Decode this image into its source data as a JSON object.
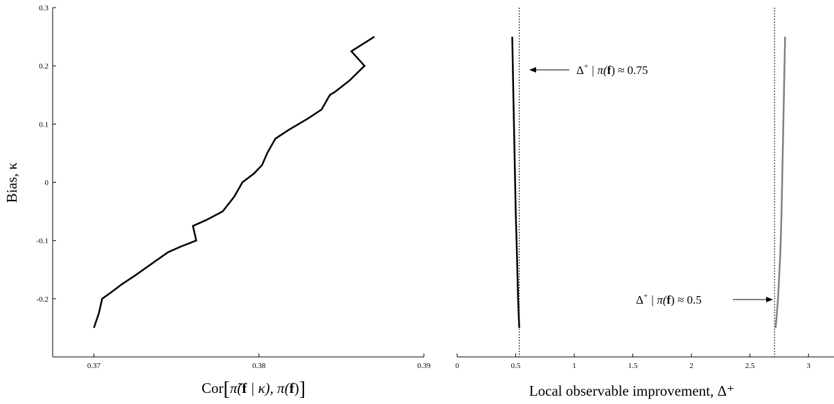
{
  "chart_data": [
    {
      "type": "line",
      "ylabel": "Bias, κ",
      "xlabel_parts": [
        "Cor",
        "[",
        "π̃(",
        "f",
        " | κ), π(",
        "f",
        ")",
        "]"
      ],
      "xlim": [
        0.3675,
        0.39
      ],
      "ylim": [
        -0.3,
        0.3
      ],
      "x_ticks": [
        "0.37",
        "0.38",
        "0.39"
      ],
      "x_tick_values": [
        0.37,
        0.38,
        0.39
      ],
      "y_ticks": [
        "0.3",
        "0.2",
        "0.1",
        "0",
        "-0.1",
        "-0.2"
      ],
      "y_tick_values": [
        0.3,
        0.2,
        0.1,
        0,
        -0.1,
        -0.2
      ],
      "series": [
        {
          "color": "#000000",
          "x": [
            0.37,
            0.3703,
            0.3705,
            0.371,
            0.3717,
            0.3725,
            0.3735,
            0.3745,
            0.3753,
            0.3762,
            0.376,
            0.3768,
            0.3778,
            0.3785,
            0.379,
            0.3797,
            0.3802,
            0.3805,
            0.381,
            0.3818,
            0.383,
            0.3838,
            0.3843,
            0.3846,
            0.3855,
            0.3864,
            0.3856,
            0.387
          ],
          "y": [
            -0.25,
            -0.225,
            -0.2,
            -0.19,
            -0.175,
            -0.16,
            -0.14,
            -0.12,
            -0.11,
            -0.1,
            -0.075,
            -0.065,
            -0.05,
            -0.025,
            0.0,
            0.015,
            0.03,
            0.05,
            0.075,
            0.09,
            0.11,
            0.125,
            0.15,
            0.155,
            0.175,
            0.2,
            0.225,
            0.25
          ]
        }
      ]
    },
    {
      "type": "line",
      "xlabel": "Local observable improvement, Δ⁺",
      "xlim": [
        0,
        3.2
      ],
      "ylim": [
        -0.3,
        0.3
      ],
      "x_ticks": [
        "0",
        "0.5",
        "1",
        "1.5",
        "2",
        "2.5",
        "3"
      ],
      "x_tick_values": [
        0,
        0.5,
        1,
        1.5,
        2,
        2.5,
        3
      ],
      "series": [
        {
          "color": "#000000",
          "x": [
            0.47,
            0.48,
            0.49,
            0.5,
            0.51,
            0.52,
            0.53
          ],
          "y": [
            0.25,
            0.15,
            0.05,
            -0.05,
            -0.12,
            -0.2,
            -0.25
          ]
        },
        {
          "color": "#808080",
          "x": [
            2.8,
            2.79,
            2.78,
            2.77,
            2.76,
            2.74,
            2.72
          ],
          "y": [
            0.25,
            0.15,
            0.05,
            -0.05,
            -0.12,
            -0.2,
            -0.25
          ]
        }
      ],
      "reference_lines": [
        {
          "x": 0.53,
          "style": "dotted"
        },
        {
          "x": 2.71,
          "style": "dotted"
        }
      ],
      "annotations": [
        {
          "parts": [
            "Δ",
            "+",
            " | π(",
            "f",
            ") ≈ 0.75"
          ],
          "x": 0.53,
          "y": 0.195,
          "arrow": "left"
        },
        {
          "parts": [
            "Δ",
            "+",
            " | π(",
            "f",
            ") ≈ 0.5"
          ],
          "x": 2.71,
          "y": -0.2,
          "arrow": "right"
        }
      ]
    }
  ]
}
